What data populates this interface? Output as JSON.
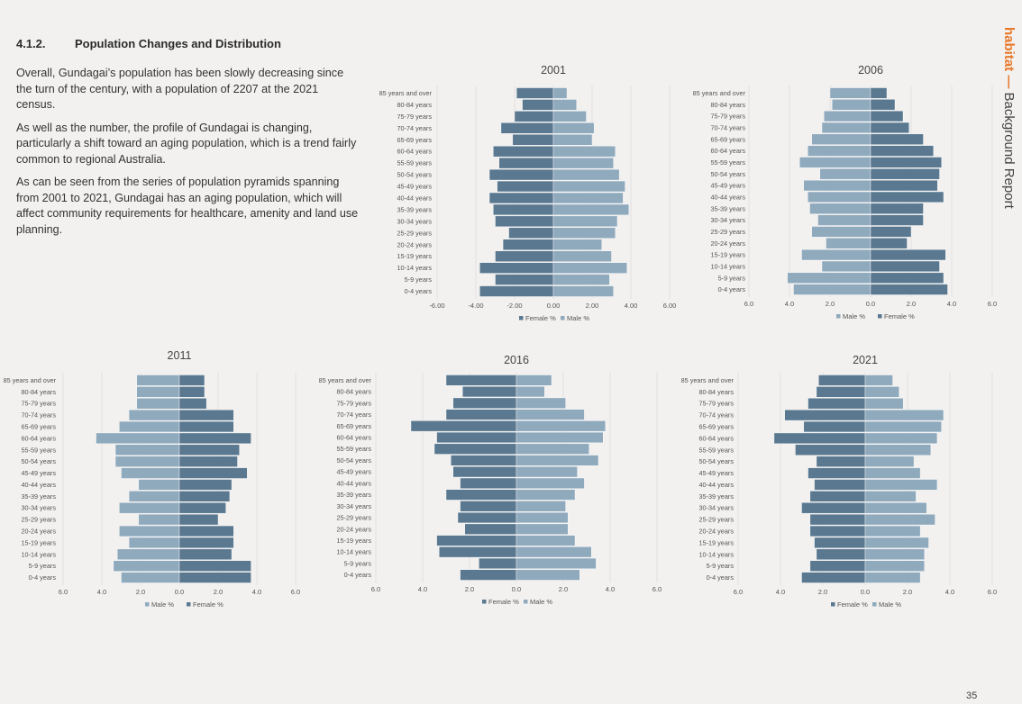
{
  "section": {
    "number": "4.1.2.",
    "title": "Population Changes and Distribution"
  },
  "paragraphs": [
    "Overall, Gundagai’s population has been slowly decreasing since the turn of the century, with a population of 2207 at the 2021 census.",
    "As well as the number, the profile of Gundagai is changing, particularly a shift toward an aging population, which is a trend fairly common to regional Australia.",
    "As can be seen from the series of population pyramids spanning from 2001 to 2021, Gundagai has an aging population, which will affect community requirements for healthcare, amenity and land use planning."
  ],
  "sidebar": {
    "brand": "habitat",
    "dash": "—",
    "label": "Background Report"
  },
  "page_number": "35",
  "colors": {
    "dark": "#5a7890",
    "light": "#8fa9bd",
    "accent": "#e8782a"
  },
  "chart_data": [
    {
      "type": "bar",
      "orientation": "horizontal-pyramid",
      "title": "2001",
      "categories": [
        "85 years and over",
        "80-84 years",
        "75-79 years",
        "70-74 years",
        "65-69 years",
        "60-64 years",
        "55-59 years",
        "50-54 years",
        "45-49 years",
        "40-44 years",
        "35-39 years",
        "30-34 years",
        "25-29 years",
        "20-24 years",
        "15-19 years",
        "10-14 years",
        "5-9 years",
        "0-4 years"
      ],
      "x_ticks": [
        "-6.00",
        "-4.00",
        "-2.00",
        "0.00",
        "2.00",
        "4.00",
        "6.00"
      ],
      "xlim": [
        -6,
        6
      ],
      "legend": [
        "Female %",
        "Male %"
      ],
      "series": [
        {
          "name": "Female %",
          "side": "left",
          "color": "dark",
          "values": [
            1.9,
            1.6,
            2.0,
            2.7,
            2.1,
            3.1,
            2.8,
            3.3,
            2.9,
            3.3,
            3.1,
            3.0,
            2.3,
            2.6,
            3.0,
            3.8,
            3.0,
            3.8
          ]
        },
        {
          "name": "Male %",
          "side": "right",
          "color": "light",
          "values": [
            0.7,
            1.2,
            1.7,
            2.1,
            2.0,
            3.2,
            3.1,
            3.4,
            3.7,
            3.6,
            3.9,
            3.3,
            3.2,
            2.5,
            3.0,
            3.8,
            2.9,
            3.1
          ]
        }
      ]
    },
    {
      "type": "bar",
      "orientation": "horizontal-pyramid",
      "title": "2006",
      "categories": [
        "85 years and over",
        "80-84 years",
        "75-79 years",
        "70-74 years",
        "65-69 years",
        "60-64 years",
        "55-59 years",
        "50-54 years",
        "45-49 years",
        "40-44 years",
        "35-39 years",
        "30-34 years",
        "25-29 years",
        "20-24 years",
        "15-19 years",
        "10-14 years",
        "5-9 years",
        "0-4 years"
      ],
      "x_ticks": [
        "6.0",
        "4.0",
        "2.0",
        "0.0",
        "2.0",
        "4.0",
        "6.0"
      ],
      "xlim": [
        -6,
        6
      ],
      "legend": [
        "Male %",
        "Female %"
      ],
      "series": [
        {
          "name": "Male %",
          "side": "left",
          "color": "light",
          "values": [
            2.0,
            1.9,
            2.3,
            2.4,
            2.9,
            3.1,
            3.5,
            2.5,
            3.3,
            3.1,
            3.0,
            2.6,
            2.9,
            2.2,
            3.4,
            2.4,
            4.1,
            3.8
          ]
        },
        {
          "name": "Female %",
          "side": "right",
          "color": "dark",
          "values": [
            0.8,
            1.2,
            1.6,
            1.9,
            2.6,
            3.1,
            3.5,
            3.4,
            3.3,
            3.6,
            2.6,
            2.6,
            2.0,
            1.8,
            3.7,
            3.4,
            3.6,
            3.8
          ]
        }
      ]
    },
    {
      "type": "bar",
      "orientation": "horizontal-pyramid",
      "title": "2011",
      "categories": [
        "85 years and over",
        "80-84 years",
        "75-79 years",
        "70-74 years",
        "65-69 years",
        "60-64 years",
        "55-59 years",
        "50-54 years",
        "45-49 years",
        "40-44 years",
        "35-39 years",
        "30-34 years",
        "25-29 years",
        "20-24 years",
        "15-19 years",
        "10-14 years",
        "5-9 years",
        "0-4 years"
      ],
      "x_ticks": [
        "6.0",
        "4.0",
        "2.0",
        "0.0",
        "2.0",
        "4.0",
        "6.0"
      ],
      "xlim": [
        -6,
        6
      ],
      "legend": [
        "Male %",
        "Female %"
      ],
      "series": [
        {
          "name": "Male %",
          "side": "left",
          "color": "light",
          "values": [
            2.2,
            2.2,
            2.2,
            2.6,
            3.1,
            4.3,
            3.3,
            3.3,
            3.0,
            2.1,
            2.6,
            3.1,
            2.1,
            3.1,
            2.6,
            3.2,
            3.4,
            3.0
          ]
        },
        {
          "name": "Female %",
          "side": "right",
          "color": "dark",
          "values": [
            1.3,
            1.3,
            1.4,
            2.8,
            2.8,
            3.7,
            3.1,
            3.0,
            3.5,
            2.7,
            2.6,
            2.4,
            2.0,
            2.8,
            2.8,
            2.7,
            3.7,
            3.7
          ]
        }
      ]
    },
    {
      "type": "bar",
      "orientation": "horizontal-pyramid",
      "title": "2016",
      "categories": [
        "85 years and over",
        "80-84 years",
        "75-79 years",
        "70-74 years",
        "65-69 years",
        "60-64 years",
        "55-59 years",
        "50-54 years",
        "45-49 years",
        "40-44 years",
        "35-39 years",
        "30-34 years",
        "25-29 years",
        "20-24 years",
        "15-19 years",
        "10-14 years",
        "5-9 years",
        "0-4 years"
      ],
      "x_ticks": [
        "6.0",
        "4.0",
        "2.0",
        "0.0",
        "2.0",
        "4.0",
        "6.0"
      ],
      "xlim": [
        -6,
        6
      ],
      "legend": [
        "Female %",
        "Male %"
      ],
      "series": [
        {
          "name": "Female %",
          "side": "left",
          "color": "dark",
          "values": [
            3.0,
            2.3,
            2.7,
            3.0,
            4.5,
            3.4,
            3.5,
            2.8,
            2.7,
            2.4,
            3.0,
            2.4,
            2.5,
            2.2,
            3.4,
            3.3,
            1.6,
            2.4
          ]
        },
        {
          "name": "Male %",
          "side": "right",
          "color": "light",
          "values": [
            1.5,
            1.2,
            2.1,
            2.9,
            3.8,
            3.7,
            3.1,
            3.5,
            2.6,
            2.9,
            2.5,
            2.1,
            2.2,
            2.2,
            2.5,
            3.2,
            3.4,
            2.7
          ]
        }
      ]
    },
    {
      "type": "bar",
      "orientation": "horizontal-pyramid",
      "title": "2021",
      "categories": [
        "85 years and over",
        "80-84 years",
        "75-79 years",
        "70-74 years",
        "65-69 years",
        "60-64 years",
        "55-59 years",
        "50-54 years",
        "45-49 years",
        "40-44 years",
        "35-39 years",
        "30-34 years",
        "25-29 years",
        "20-24 years",
        "15-19 years",
        "10-14 years",
        "5-9 years",
        "0-4 years"
      ],
      "x_ticks": [
        "6.0",
        "4.0",
        "2.0",
        "0.0",
        "2.0",
        "4.0",
        "6.0"
      ],
      "xlim": [
        -6,
        6
      ],
      "legend": [
        "Female %",
        "Male %"
      ],
      "series": [
        {
          "name": "Female %",
          "side": "left",
          "color": "dark",
          "values": [
            2.2,
            2.3,
            2.7,
            3.8,
            2.9,
            4.3,
            3.3,
            2.3,
            2.7,
            2.4,
            2.6,
            3.0,
            2.6,
            2.6,
            2.4,
            2.3,
            2.6,
            3.0
          ]
        },
        {
          "name": "Male %",
          "side": "right",
          "color": "light",
          "values": [
            1.3,
            1.6,
            1.8,
            3.7,
            3.6,
            3.4,
            3.1,
            2.3,
            2.6,
            3.4,
            2.4,
            2.9,
            3.3,
            2.6,
            3.0,
            2.8,
            2.8,
            2.6
          ]
        }
      ]
    }
  ]
}
